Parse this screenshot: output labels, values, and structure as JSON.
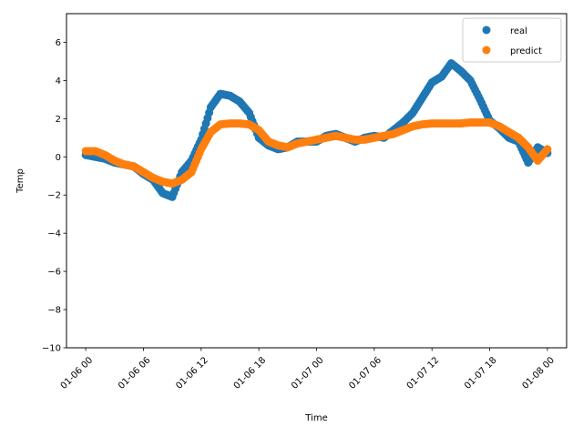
{
  "chart_data": {
    "type": "scatter",
    "xlabel": "Time",
    "ylabel": "Temp",
    "ylim": [
      -10,
      7.5
    ],
    "xlim": [
      "2024-01-05 22:00",
      "2024-01-08 02:00"
    ],
    "x_ticks": [
      "01-06 00",
      "01-06 06",
      "01-06 12",
      "01-06 18",
      "01-07 00",
      "01-07 06",
      "01-07 12",
      "01-07 18",
      "01-08 00"
    ],
    "y_ticks": [
      6,
      4,
      2,
      0,
      -2,
      -4,
      -6,
      -8,
      -10
    ],
    "legend_position": "top-right",
    "grid": false,
    "series": [
      {
        "name": "real",
        "color": "#1f77b4",
        "x": [
          "2024-01-06 00:00",
          "2024-01-06 01:00",
          "2024-01-06 02:00",
          "2024-01-06 03:00",
          "2024-01-06 04:00",
          "2024-01-06 05:00",
          "2024-01-06 06:00",
          "2024-01-06 07:00",
          "2024-01-06 08:00",
          "2024-01-06 09:00",
          "2024-01-06 10:00",
          "2024-01-06 11:00",
          "2024-01-06 12:00",
          "2024-01-06 13:00",
          "2024-01-06 14:00",
          "2024-01-06 15:00",
          "2024-01-06 16:00",
          "2024-01-06 17:00",
          "2024-01-06 18:00",
          "2024-01-06 19:00",
          "2024-01-06 20:00",
          "2024-01-06 21:00",
          "2024-01-06 22:00",
          "2024-01-06 23:00",
          "2024-01-07 00:00",
          "2024-01-07 01:00",
          "2024-01-07 02:00",
          "2024-01-07 03:00",
          "2024-01-07 04:00",
          "2024-01-07 05:00",
          "2024-01-07 06:00",
          "2024-01-07 07:00",
          "2024-01-07 08:00",
          "2024-01-07 09:00",
          "2024-01-07 10:00",
          "2024-01-07 11:00",
          "2024-01-07 12:00",
          "2024-01-07 13:00",
          "2024-01-07 14:00",
          "2024-01-07 15:00",
          "2024-01-07 16:00",
          "2024-01-07 17:00",
          "2024-01-07 18:00",
          "2024-01-07 19:00",
          "2024-01-07 20:00",
          "2024-01-07 21:00",
          "2024-01-07 22:00",
          "2024-01-07 23:00",
          "2024-01-08 00:00"
        ],
        "values": [
          0.1,
          0.0,
          -0.1,
          -0.3,
          -0.4,
          -0.5,
          -0.9,
          -1.2,
          -1.9,
          -2.1,
          -0.8,
          -0.2,
          0.9,
          2.6,
          3.3,
          3.2,
          2.9,
          2.3,
          1.0,
          0.6,
          0.4,
          0.5,
          0.8,
          0.8,
          0.8,
          1.1,
          1.2,
          1.0,
          0.8,
          1.0,
          1.1,
          1.0,
          1.4,
          1.8,
          2.3,
          3.1,
          3.9,
          4.2,
          4.9,
          4.5,
          4.0,
          3.0,
          1.9,
          1.5,
          1.0,
          0.8,
          -0.3,
          0.5,
          0.2
        ]
      },
      {
        "name": "predict",
        "color": "#ff7f0e",
        "x": [
          "2024-01-06 00:00",
          "2024-01-06 01:00",
          "2024-01-06 02:00",
          "2024-01-06 03:00",
          "2024-01-06 04:00",
          "2024-01-06 05:00",
          "2024-01-06 06:00",
          "2024-01-06 07:00",
          "2024-01-06 08:00",
          "2024-01-06 09:00",
          "2024-01-06 10:00",
          "2024-01-06 11:00",
          "2024-01-06 12:00",
          "2024-01-06 13:00",
          "2024-01-06 14:00",
          "2024-01-06 15:00",
          "2024-01-06 16:00",
          "2024-01-06 17:00",
          "2024-01-06 18:00",
          "2024-01-06 19:00",
          "2024-01-06 20:00",
          "2024-01-06 21:00",
          "2024-01-06 22:00",
          "2024-01-06 23:00",
          "2024-01-07 00:00",
          "2024-01-07 01:00",
          "2024-01-07 02:00",
          "2024-01-07 03:00",
          "2024-01-07 04:00",
          "2024-01-07 05:00",
          "2024-01-07 06:00",
          "2024-01-07 07:00",
          "2024-01-07 08:00",
          "2024-01-07 09:00",
          "2024-01-07 10:00",
          "2024-01-07 11:00",
          "2024-01-07 12:00",
          "2024-01-07 13:00",
          "2024-01-07 14:00",
          "2024-01-07 15:00",
          "2024-01-07 16:00",
          "2024-01-07 17:00",
          "2024-01-07 18:00",
          "2024-01-07 19:00",
          "2024-01-07 20:00",
          "2024-01-07 21:00",
          "2024-01-07 22:00",
          "2024-01-07 23:00",
          "2024-01-08 00:00"
        ],
        "values": [
          0.3,
          0.3,
          0.1,
          -0.2,
          -0.4,
          -0.5,
          -0.8,
          -1.1,
          -1.3,
          -1.4,
          -1.2,
          -0.8,
          0.4,
          1.3,
          1.7,
          1.75,
          1.75,
          1.7,
          1.4,
          0.8,
          0.6,
          0.5,
          0.7,
          0.8,
          0.9,
          1.0,
          1.1,
          1.0,
          0.9,
          0.9,
          1.0,
          1.1,
          1.2,
          1.4,
          1.6,
          1.7,
          1.75,
          1.75,
          1.75,
          1.75,
          1.8,
          1.8,
          1.8,
          1.6,
          1.3,
          1.0,
          0.5,
          -0.2,
          0.4
        ]
      }
    ]
  }
}
